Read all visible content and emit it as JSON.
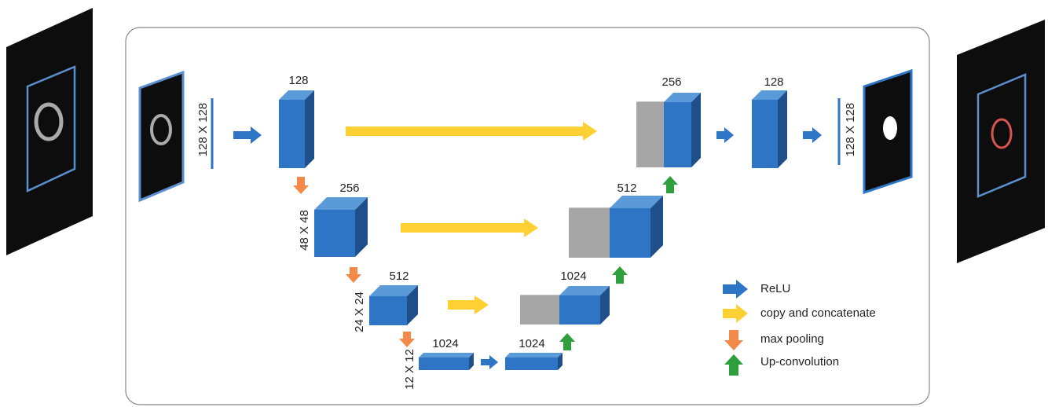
{
  "input": {
    "size_label": "128 X 128"
  },
  "encoder": [
    {
      "channels": "128"
    },
    {
      "channels": "256",
      "size_label": "48 X 48"
    },
    {
      "channels": "512",
      "size_label": "24 X 24"
    },
    {
      "channels": "1024",
      "size_label": "12 X 12"
    }
  ],
  "bottleneck": {
    "channels": "1024"
  },
  "decoder": [
    {
      "channels": "1024"
    },
    {
      "channels": "512"
    },
    {
      "channels": "256"
    },
    {
      "channels": "128"
    }
  ],
  "output": {
    "size_label": "128 X 128"
  },
  "legend": [
    "ReLU",
    "copy and concatenate",
    "max pooling",
    "Up-convolution"
  ]
}
